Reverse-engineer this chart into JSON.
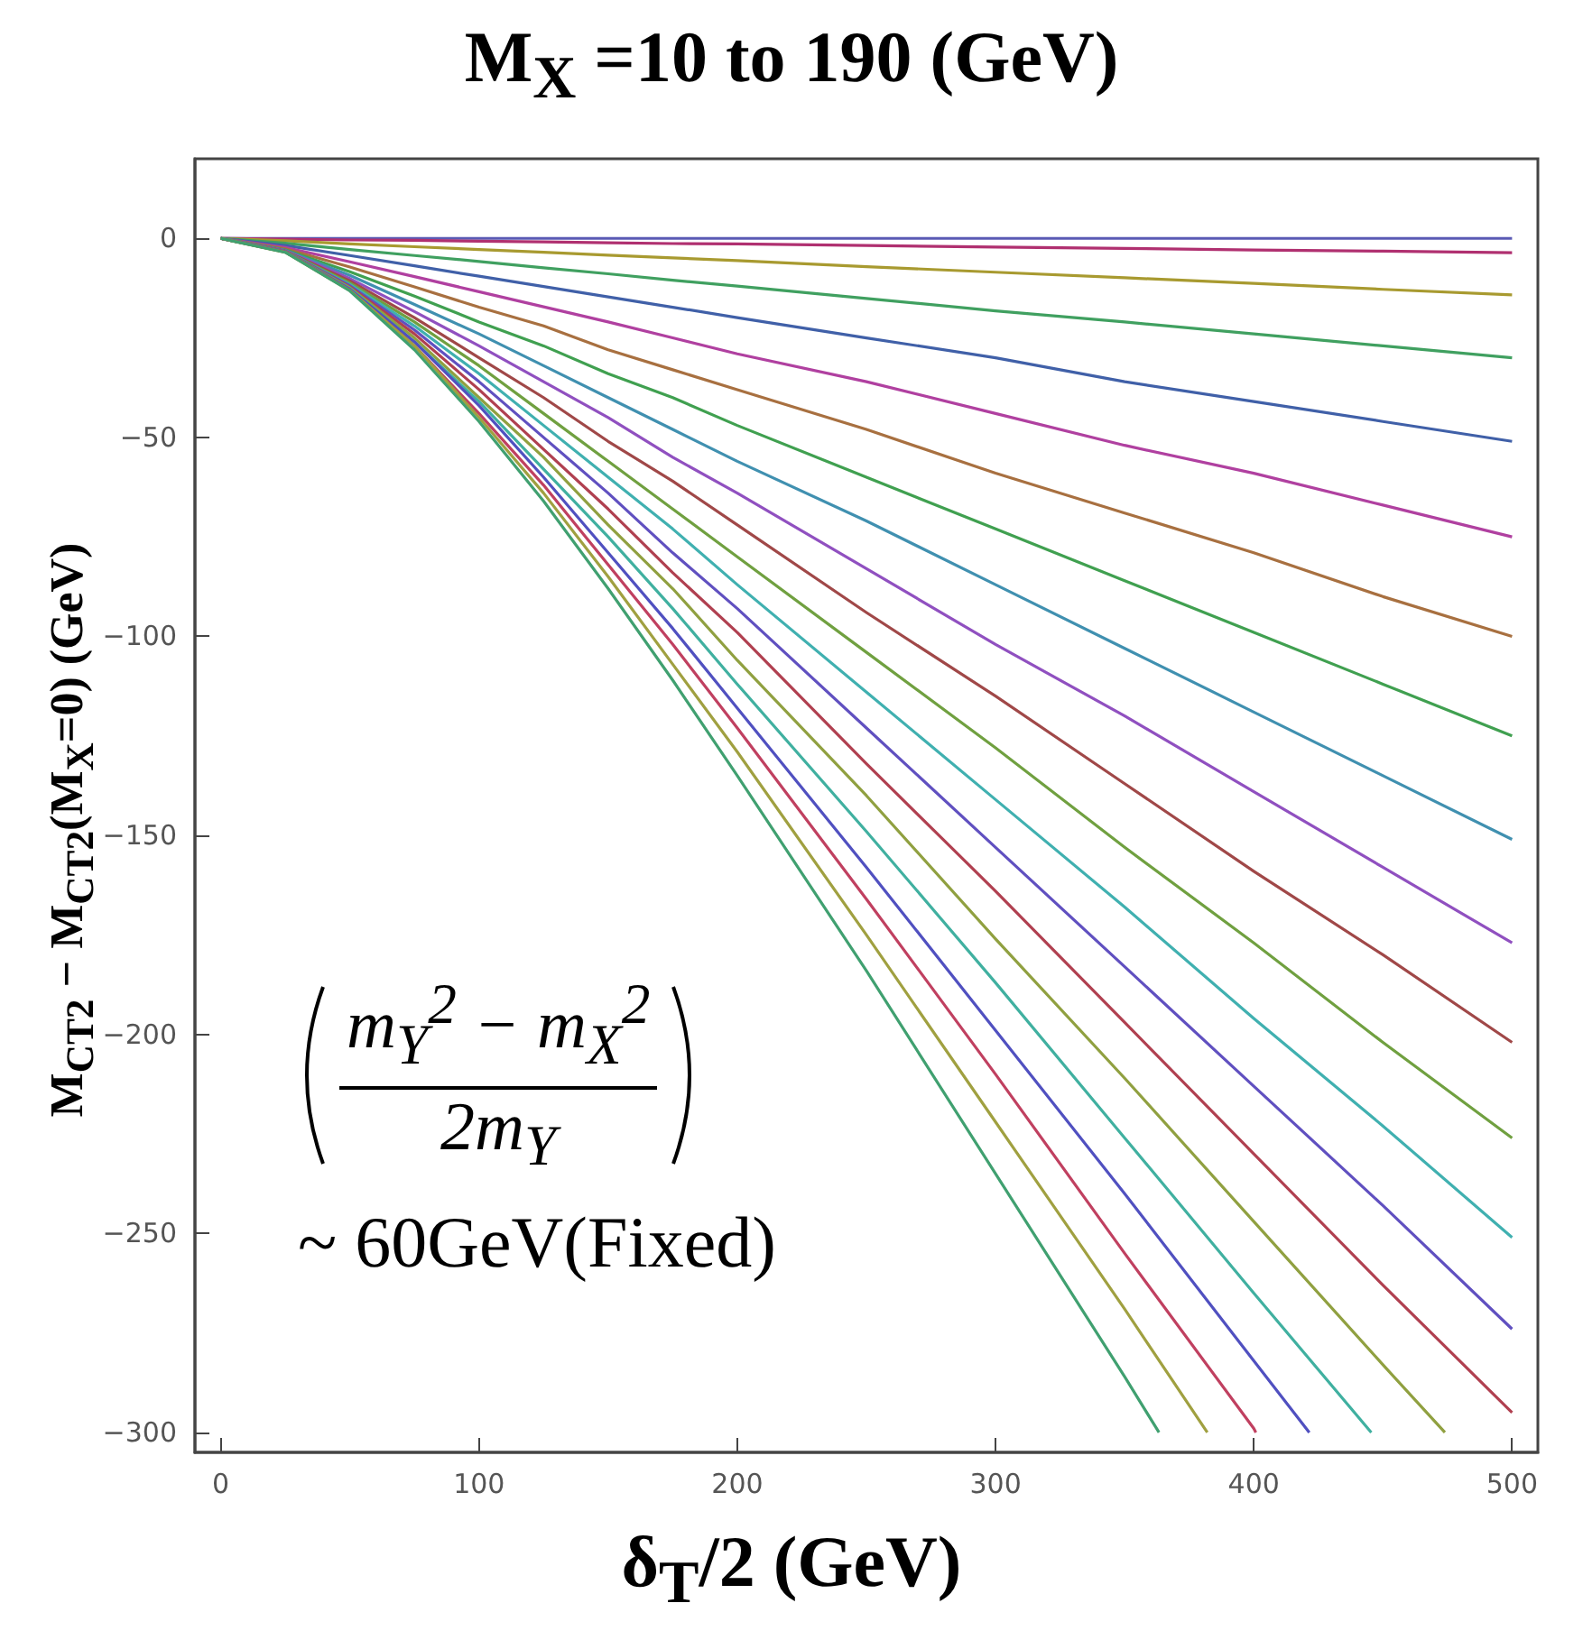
{
  "chart_data": {
    "type": "line",
    "title": "M$_{X}$ =10 to 190 (GeV)",
    "xlabel": "δ$_{T}$/2 (GeV)",
    "ylabel": "M$_{CT2}$ − M$_{CT2}$(M$_{X}$=0) (GeV)",
    "annotations": [
      "m$_{Y}$$^{2}$ − m$_{X}$$^{2}$",
      "2m$_{Y}$",
      "~ 60GeV(Fixed)"
    ],
    "xlim": [
      -10,
      510
    ],
    "xticks": [
      0,
      100,
      200,
      300,
      400,
      500
    ],
    "ylim": [
      -305,
      20
    ],
    "yticks": [
      -300,
      -250,
      -200,
      -150,
      -100,
      -50,
      0
    ],
    "grid": false,
    "marker": "none",
    "series": [
      {
        "color": "#5a5ab4",
        "x": [
          0,
          500
        ],
        "values": [
          0,
          0
        ]
      },
      {
        "color": "#b03070",
        "x": [
          0,
          25,
          50,
          75,
          100,
          125,
          150,
          175,
          200,
          250,
          300,
          350,
          400,
          450,
          500
        ],
        "values": [
          0,
          -0.2,
          -0.4,
          -0.5,
          -0.7,
          -0.9,
          -1.1,
          -1.3,
          -1.4,
          -1.8,
          -2.2,
          -2.5,
          -2.9,
          -3.2,
          -3.6
        ]
      },
      {
        "color": "#a89a30",
        "x": [
          0,
          25,
          50,
          75,
          100,
          125,
          150,
          175,
          200,
          250,
          300,
          350,
          400,
          450,
          500
        ],
        "values": [
          0,
          -0.6,
          -1.4,
          -2.1,
          -2.8,
          -3.5,
          -4.2,
          -4.9,
          -5.6,
          -7.1,
          -8.5,
          -9.9,
          -11.3,
          -12.8,
          -14.2
        ]
      },
      {
        "color": "#40a060",
        "x": [
          0,
          25,
          50,
          75,
          100,
          125,
          150,
          175,
          200,
          250,
          300,
          350,
          400,
          450,
          500
        ],
        "values": [
          0,
          -1.2,
          -2.8,
          -4.3,
          -5.8,
          -7.4,
          -8.9,
          -10.5,
          -12,
          -15.1,
          -18.2,
          -21,
          -24,
          -27,
          -30
        ]
      },
      {
        "color": "#4060a8",
        "x": [
          0,
          25,
          50,
          75,
          100,
          125,
          150,
          175,
          200,
          250,
          300,
          350,
          400,
          450,
          500
        ],
        "values": [
          0,
          -1.8,
          -4.3,
          -6.9,
          -9.5,
          -12.1,
          -14.7,
          -17.3,
          -19.9,
          -25,
          -30,
          -36,
          -41,
          -46,
          -51
        ]
      },
      {
        "color": "#b040a0",
        "x": [
          0,
          25,
          50,
          75,
          100,
          125,
          150,
          175,
          200,
          250,
          300,
          350,
          400,
          450,
          500
        ],
        "values": [
          0,
          -2.3,
          -5.9,
          -9.6,
          -13.4,
          -17.2,
          -21,
          -25,
          -29,
          -36,
          -44,
          -52,
          -59,
          -67,
          -75
        ]
      },
      {
        "color": "#a87040",
        "x": [
          0,
          25,
          50,
          75,
          100,
          125,
          150,
          175,
          200,
          250,
          300,
          350,
          400,
          450,
          500
        ],
        "values": [
          0,
          -2.6,
          -7.2,
          -12.2,
          -17.3,
          -22,
          -28,
          -33,
          -38,
          -48,
          -59,
          -69,
          -79,
          -90,
          -100
        ]
      },
      {
        "color": "#40a050",
        "x": [
          0,
          25,
          50,
          75,
          100,
          125,
          150,
          175,
          200,
          250,
          300,
          350,
          400,
          450,
          500
        ],
        "values": [
          0,
          -2.9,
          -8.4,
          -14.5,
          -21,
          -27,
          -34,
          -40,
          -47,
          -60,
          -73,
          -86,
          -99,
          -112,
          -125
        ]
      },
      {
        "color": "#4090b0",
        "x": [
          0,
          25,
          50,
          75,
          100,
          125,
          150,
          175,
          200,
          250,
          300,
          350,
          400,
          450,
          500
        ],
        "values": [
          0,
          -3,
          -9.3,
          -16.6,
          -24,
          -32,
          -40,
          -48,
          -56,
          -71,
          -87,
          -103,
          -119,
          -135,
          -151
        ]
      },
      {
        "color": "#9050c0",
        "x": [
          0,
          25,
          50,
          75,
          100,
          125,
          150,
          175,
          200,
          250,
          300,
          350,
          400,
          450,
          500
        ],
        "values": [
          0,
          -3.1,
          -10.1,
          -18.4,
          -27,
          -36,
          -45,
          -55,
          -64,
          -83,
          -102,
          -120,
          -139,
          -158,
          -177
        ]
      },
      {
        "color": "#a04848",
        "x": [
          0,
          25,
          50,
          75,
          100,
          125,
          150,
          175,
          200,
          250,
          300,
          350,
          400,
          450,
          500
        ],
        "values": [
          0,
          -3.2,
          -10.7,
          -19.9,
          -30,
          -40,
          -51,
          -61,
          -72,
          -94,
          -115,
          -137,
          -159,
          -180,
          -202
        ]
      },
      {
        "color": "#70a040",
        "x": [
          0,
          25,
          50,
          75,
          100,
          125,
          150,
          175,
          200,
          250,
          300,
          350,
          400,
          450,
          500
        ],
        "values": [
          0,
          -3.3,
          -11.2,
          -21,
          -32,
          -44,
          -56,
          -68,
          -80,
          -104,
          -128,
          -153,
          -177,
          -202,
          -226
        ]
      },
      {
        "color": "#40b0b0",
        "x": [
          0,
          25,
          50,
          75,
          100,
          125,
          150,
          175,
          200,
          250,
          300,
          350,
          400,
          450,
          500
        ],
        "values": [
          0,
          -3.3,
          -11.6,
          -22,
          -34,
          -47,
          -60,
          -73,
          -87,
          -114,
          -141,
          -168,
          -196,
          -223,
          -251
        ]
      },
      {
        "color": "#6050c0",
        "x": [
          0,
          25,
          50,
          75,
          100,
          125,
          150,
          175,
          200,
          250,
          300,
          350,
          400,
          450,
          500
        ],
        "values": [
          0,
          -3.3,
          -11.9,
          -23,
          -36,
          -50,
          -64,
          -79,
          -93,
          -123,
          -153,
          -183,
          -213,
          -243,
          -274
        ]
      },
      {
        "color": "#b04050",
        "x": [
          0,
          25,
          50,
          75,
          100,
          125,
          150,
          175,
          200,
          250,
          300,
          350,
          400,
          450,
          500
        ],
        "values": [
          0,
          -3.4,
          -12.2,
          -24,
          -38,
          -53,
          -68,
          -84,
          -99,
          -132,
          -164,
          -197,
          -230,
          -263,
          -295
        ]
      },
      {
        "color": "#90a040",
        "x": [
          0,
          25,
          50,
          75,
          100,
          125,
          150,
          175,
          200,
          250,
          300,
          350,
          400,
          450,
          474
        ],
        "values": [
          0,
          -3.4,
          -12.4,
          -25,
          -40,
          -55,
          -72,
          -88,
          -106,
          -140,
          -176,
          -211,
          -247,
          -283,
          -300
        ]
      },
      {
        "color": "#40b0a0",
        "x": [
          0,
          25,
          50,
          75,
          100,
          125,
          150,
          175,
          200,
          250,
          300,
          350,
          400,
          445.5
        ],
        "values": [
          0,
          -3.4,
          -12.6,
          -26,
          -41,
          -58,
          -75,
          -93,
          -112,
          -149,
          -187,
          -226,
          -265,
          -300
        ]
      },
      {
        "color": "#5050c0",
        "x": [
          0,
          25,
          50,
          75,
          100,
          125,
          150,
          175,
          200,
          250,
          300,
          350,
          400,
          421.5
        ],
        "values": [
          0,
          -3.4,
          -12.8,
          -26,
          -42,
          -60,
          -79,
          -98,
          -118,
          -158,
          -199,
          -240,
          -282,
          -300
        ]
      },
      {
        "color": "#c04060",
        "x": [
          0,
          25,
          50,
          75,
          100,
          125,
          150,
          175,
          200,
          250,
          300,
          350,
          400,
          400.8
        ],
        "values": [
          0,
          -3.4,
          -13,
          -27,
          -44,
          -62,
          -82,
          -102,
          -123,
          -166,
          -210,
          -255,
          -299,
          -300
        ]
      },
      {
        "color": "#a0a040",
        "x": [
          0,
          25,
          50,
          75,
          100,
          125,
          150,
          175,
          200,
          250,
          300,
          350,
          382
        ],
        "values": [
          0,
          -3.5,
          -13.1,
          -27,
          -45,
          -64,
          -85,
          -107,
          -129,
          -175,
          -222,
          -269,
          -300
        ]
      },
      {
        "color": "#40a070",
        "x": [
          0,
          25,
          50,
          75,
          100,
          125,
          150,
          175,
          200,
          250,
          300,
          350,
          363.3
        ],
        "values": [
          0,
          -3.5,
          -13.2,
          -28,
          -46,
          -66,
          -88,
          -111,
          -135,
          -184,
          -235,
          -286,
          -300
        ]
      }
    ]
  }
}
